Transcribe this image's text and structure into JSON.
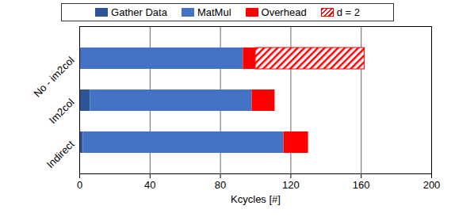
{
  "chart_data": {
    "type": "bar",
    "orientation": "horizontal",
    "stacked": true,
    "categories": [
      "No - im2col",
      "Im2col",
      "Indirect"
    ],
    "series": [
      {
        "name": "Gather Data",
        "color": "#2f5597",
        "values": [
          0,
          6,
          2
        ]
      },
      {
        "name": "MatMul",
        "color": "#4472c4",
        "values": [
          93,
          92,
          114
        ]
      },
      {
        "name": "Overhead",
        "color": "#ff0000",
        "values": [
          7,
          13,
          14
        ]
      },
      {
        "name": "d = 2",
        "color": "#ff0000",
        "line_style": "hatched",
        "values": [
          62,
          0,
          0
        ]
      }
    ],
    "xlabel": "Kcycles [#]",
    "xlim": [
      0,
      200
    ],
    "xticks": [
      0,
      40,
      80,
      120,
      160,
      200
    ],
    "grid": true,
    "legend": "top"
  }
}
